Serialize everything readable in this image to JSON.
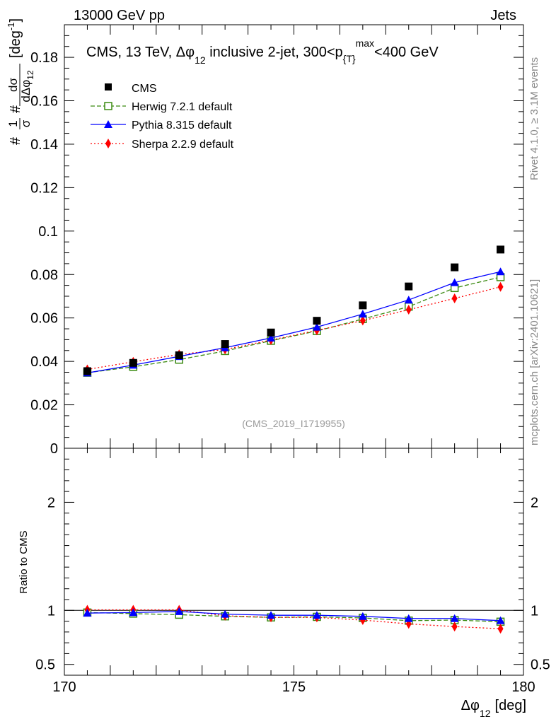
{
  "header": {
    "left": "13000 GeV pp",
    "right": "Jets"
  },
  "side_labels": {
    "top": "Rivet 4.1.0, ≥ 3.1M events",
    "bottom": "mcplots.cern.ch [arXiv:2401.10621]"
  },
  "watermark": "(CMS_2019_I1719955)",
  "plot_title": {
    "main": "CMS, 13 TeV, Δφ",
    "main_sub": "12",
    "rest": " inclusive 2-jet, 300<p",
    "rest_sub": "{T}",
    "rest_sup": "max",
    "tail": "<400 GeV"
  },
  "axis_titles": {
    "y_main_prefix": "#",
    "y_main_frac1": "1",
    "y_main_frac1_den": "σ",
    "y_main_hash": "#",
    "y_main_frac2": "dσ",
    "y_main_frac2_den": "dΔφ",
    "y_main_frac2_den_sub": "12",
    "y_main_unit": "[deg",
    "y_main_unit_sup": "-1",
    "y_main_unit_close": "]",
    "y_ratio": "Ratio to CMS",
    "x_main": "Δφ",
    "x_sub": "12",
    "x_unit": "[deg]"
  },
  "colors": {
    "cms": "#000000",
    "herwig": "#3a8a10",
    "pythia": "#0000ff",
    "sherpa": "#ff0000"
  },
  "chart_data": {
    "type": "scatter",
    "x": [
      170.5,
      171.5,
      172.5,
      173.5,
      174.5,
      175.5,
      176.5,
      177.5,
      178.5,
      179.5
    ],
    "xlim": [
      170,
      180
    ],
    "x_ticks": [
      "170",
      "175",
      "180"
    ],
    "x_tick_values": [
      170,
      175,
      180
    ],
    "main_ylim": [
      0,
      0.195
    ],
    "main_y_tick_values": [
      0,
      0.02,
      0.04,
      0.06,
      0.08,
      0.1,
      0.12,
      0.14,
      0.16,
      0.18
    ],
    "main_y_ticks": [
      "0",
      "0.02",
      "0.04",
      "0.06",
      "0.08",
      "0.1",
      "0.12",
      "0.14",
      "0.16",
      "0.18"
    ],
    "ratio_ylim": [
      0.4,
      2.5
    ],
    "ratio_y_tick_values": [
      0.5,
      1,
      2
    ],
    "ratio_y_ticks": [
      "0.5",
      "1",
      "2"
    ],
    "series": [
      {
        "name": "CMS",
        "legend": "CMS",
        "color_key": "cms",
        "marker": "square",
        "values": [
          0.0355,
          0.0393,
          0.0428,
          0.048,
          0.0533,
          0.0587,
          0.0658,
          0.0745,
          0.0833,
          0.0915
        ],
        "ratio": [
          1,
          1,
          1,
          1,
          1,
          1,
          1,
          1,
          1,
          1
        ]
      },
      {
        "name": "Herwig",
        "legend": "Herwig 7.2.1 default",
        "color_key": "herwig",
        "marker": "open-square",
        "dash": "6,3",
        "values": [
          0.0348,
          0.0375,
          0.0408,
          0.0448,
          0.0495,
          0.054,
          0.0595,
          0.0652,
          0.0738,
          0.0788
        ],
        "ratio": [
          0.98,
          0.97,
          0.96,
          0.945,
          0.935,
          0.94,
          0.93,
          0.905,
          0.91,
          0.895
        ]
      },
      {
        "name": "Pythia",
        "legend": "Pythia 8.315 default",
        "color_key": "pythia",
        "marker": "triangle",
        "values": [
          0.0347,
          0.0383,
          0.0423,
          0.0463,
          0.0508,
          0.0558,
          0.0618,
          0.0683,
          0.0763,
          0.0813
        ],
        "ratio": [
          0.975,
          0.98,
          0.99,
          0.965,
          0.955,
          0.955,
          0.945,
          0.925,
          0.925,
          0.905
        ]
      },
      {
        "name": "Sherpa",
        "legend": "Sherpa 2.2.9 default",
        "color_key": "sherpa",
        "marker": "diamond",
        "dash": "2,3",
        "values": [
          0.0363,
          0.0398,
          0.0432,
          0.0455,
          0.0498,
          0.0543,
          0.0588,
          0.0638,
          0.069,
          0.0743
        ],
        "ratio": [
          1.005,
          1.005,
          1.005,
          0.95,
          0.935,
          0.935,
          0.91,
          0.875,
          0.85,
          0.83
        ]
      }
    ]
  }
}
